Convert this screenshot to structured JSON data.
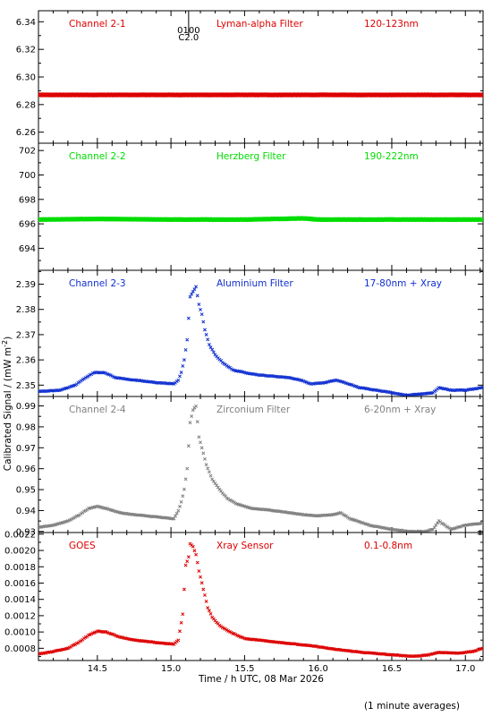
{
  "figure": {
    "xlabel": "Time / h UTC, 08 Mar 2026",
    "ylabel": "Calibrated Signal / (mW m",
    "ylabel_sup": "-2",
    "ylabel_close": ")",
    "footer": "(1 minute averages)",
    "marker_top": "0100",
    "marker_bottom": "C2.0",
    "marker_time": 15.12
  },
  "chart_data": [
    {
      "type": "scatter",
      "name": "Channel 2-1",
      "filter": "Lyman-alpha Filter",
      "band": "120-123nm",
      "color": "#dd0000",
      "xlim": [
        14.1,
        17.12
      ],
      "ylim": [
        6.252,
        6.348
      ],
      "yticks": [
        6.26,
        6.28,
        6.3,
        6.32,
        6.34
      ],
      "ytick_labels": [
        "6.26",
        "6.28",
        "6.30",
        "6.32",
        "6.34"
      ],
      "points": [
        [
          14.1,
          6.287
        ],
        [
          14.5,
          6.287
        ],
        [
          15.0,
          6.287
        ],
        [
          15.5,
          6.287
        ],
        [
          16.0,
          6.287
        ],
        [
          16.5,
          6.287
        ],
        [
          17.12,
          6.287
        ]
      ]
    },
    {
      "type": "scatter",
      "name": "Channel 2-2",
      "filter": "Herzberg Filter",
      "band": "190-222nm",
      "color": "#00dd00",
      "xlim": [
        14.1,
        17.12
      ],
      "ylim": [
        692.2,
        702.6
      ],
      "yticks": [
        694,
        696,
        698,
        700,
        702
      ],
      "ytick_labels": [
        "694",
        "696",
        "698",
        "700",
        "702"
      ],
      "points": [
        [
          14.1,
          696.35
        ],
        [
          14.5,
          696.4
        ],
        [
          15.0,
          696.35
        ],
        [
          15.5,
          696.35
        ],
        [
          15.9,
          696.45
        ],
        [
          16.0,
          696.35
        ],
        [
          16.5,
          696.35
        ],
        [
          17.12,
          696.35
        ]
      ]
    },
    {
      "type": "scatter",
      "name": "Channel 2-3",
      "filter": "Aluminium Filter",
      "band": "17-80nm + Xray",
      "color": "#1030d0",
      "xlim": [
        14.1,
        17.12
      ],
      "ylim": [
        2.3455,
        2.3955
      ],
      "yticks": [
        2.35,
        2.36,
        2.37,
        2.38,
        2.39
      ],
      "ytick_labels": [
        "2.35",
        "2.36",
        "2.37",
        "2.38",
        "2.39"
      ],
      "points": [
        [
          14.1,
          2.3475
        ],
        [
          14.25,
          2.348
        ],
        [
          14.35,
          2.35
        ],
        [
          14.42,
          2.353
        ],
        [
          14.48,
          2.355
        ],
        [
          14.55,
          2.355
        ],
        [
          14.62,
          2.353
        ],
        [
          14.75,
          2.352
        ],
        [
          14.9,
          2.351
        ],
        [
          15.02,
          2.3505
        ],
        [
          15.05,
          2.352
        ],
        [
          15.07,
          2.355
        ],
        [
          15.09,
          2.36
        ],
        [
          15.11,
          2.368
        ],
        [
          15.13,
          2.385
        ],
        [
          15.15,
          2.387
        ],
        [
          15.17,
          2.389
        ],
        [
          15.19,
          2.382
        ],
        [
          15.21,
          2.378
        ],
        [
          15.23,
          2.372
        ],
        [
          15.26,
          2.366
        ],
        [
          15.3,
          2.362
        ],
        [
          15.35,
          2.359
        ],
        [
          15.42,
          2.356
        ],
        [
          15.5,
          2.355
        ],
        [
          15.6,
          2.354
        ],
        [
          15.7,
          2.3535
        ],
        [
          15.8,
          2.353
        ],
        [
          15.88,
          2.352
        ],
        [
          15.95,
          2.3505
        ],
        [
          16.05,
          2.351
        ],
        [
          16.12,
          2.352
        ],
        [
          16.18,
          2.351
        ],
        [
          16.28,
          2.349
        ],
        [
          16.4,
          2.348
        ],
        [
          16.5,
          2.347
        ],
        [
          16.6,
          2.346
        ],
        [
          16.7,
          2.3465
        ],
        [
          16.78,
          2.347
        ],
        [
          16.82,
          2.349
        ],
        [
          16.9,
          2.348
        ],
        [
          17.0,
          2.348
        ],
        [
          17.12,
          2.349
        ]
      ]
    },
    {
      "type": "scatter",
      "name": "Channel 2-4",
      "filter": "Zirconium Filter",
      "band": "6-20nm + Xray",
      "color": "#808080",
      "xlim": [
        14.1,
        17.12
      ],
      "ylim": [
        0.9295,
        0.9945
      ],
      "yticks": [
        0.93,
        0.94,
        0.95,
        0.96,
        0.97,
        0.98,
        0.99
      ],
      "ytick_labels": [
        "0.93",
        "0.94",
        "0.95",
        "0.96",
        "0.97",
        "0.98",
        "0.99"
      ],
      "points": [
        [
          14.1,
          0.932
        ],
        [
          14.2,
          0.933
        ],
        [
          14.3,
          0.935
        ],
        [
          14.38,
          0.938
        ],
        [
          14.44,
          0.941
        ],
        [
          14.5,
          0.942
        ],
        [
          14.56,
          0.941
        ],
        [
          14.65,
          0.939
        ],
        [
          14.75,
          0.938
        ],
        [
          14.9,
          0.937
        ],
        [
          15.02,
          0.936
        ],
        [
          15.05,
          0.94
        ],
        [
          15.07,
          0.944
        ],
        [
          15.09,
          0.95
        ],
        [
          15.11,
          0.96
        ],
        [
          15.13,
          0.982
        ],
        [
          15.15,
          0.988
        ],
        [
          15.17,
          0.99
        ],
        [
          15.19,
          0.975
        ],
        [
          15.21,
          0.97
        ],
        [
          15.24,
          0.962
        ],
        [
          15.28,
          0.955
        ],
        [
          15.33,
          0.95
        ],
        [
          15.38,
          0.946
        ],
        [
          15.45,
          0.943
        ],
        [
          15.55,
          0.941
        ],
        [
          15.7,
          0.94
        ],
        [
          15.8,
          0.939
        ],
        [
          15.9,
          0.938
        ],
        [
          16.0,
          0.9375
        ],
        [
          16.1,
          0.938
        ],
        [
          16.15,
          0.939
        ],
        [
          16.22,
          0.936
        ],
        [
          16.35,
          0.933
        ],
        [
          16.5,
          0.931
        ],
        [
          16.62,
          0.93
        ],
        [
          16.72,
          0.93
        ],
        [
          16.78,
          0.931
        ],
        [
          16.82,
          0.935
        ],
        [
          16.9,
          0.931
        ],
        [
          17.0,
          0.933
        ],
        [
          17.12,
          0.934
        ]
      ]
    },
    {
      "type": "scatter",
      "name": "GOES",
      "filter": "Xray Sensor",
      "band": "0.1-0.8nm",
      "color": "#dd0000",
      "xlim": [
        14.1,
        17.12
      ],
      "ylim": [
        0.00065,
        0.00222
      ],
      "yticks": [
        0.0008,
        0.001,
        0.0012,
        0.0014,
        0.0016,
        0.0018,
        0.002,
        0.0022
      ],
      "ytick_labels": [
        "0.0008",
        "0.0010",
        "0.0012",
        "0.0014",
        "0.0016",
        "0.0018",
        "0.0020",
        "0.0022"
      ],
      "points": [
        [
          14.1,
          0.00073
        ],
        [
          14.2,
          0.00076
        ],
        [
          14.3,
          0.0008
        ],
        [
          14.38,
          0.00088
        ],
        [
          14.44,
          0.00096
        ],
        [
          14.5,
          0.00101
        ],
        [
          14.56,
          0.001
        ],
        [
          14.65,
          0.00094
        ],
        [
          14.75,
          0.0009
        ],
        [
          14.9,
          0.00087
        ],
        [
          15.02,
          0.00085
        ],
        [
          15.05,
          0.0009
        ],
        [
          15.08,
          0.00122
        ],
        [
          15.1,
          0.00182
        ],
        [
          15.12,
          0.00192
        ],
        [
          15.13,
          0.00208
        ],
        [
          15.15,
          0.00205
        ],
        [
          15.17,
          0.00195
        ],
        [
          15.19,
          0.00175
        ],
        [
          15.21,
          0.0016
        ],
        [
          15.23,
          0.00145
        ],
        [
          15.25,
          0.0013
        ],
        [
          15.28,
          0.00118
        ],
        [
          15.33,
          0.00108
        ],
        [
          15.4,
          0.001
        ],
        [
          15.5,
          0.00092
        ],
        [
          15.7,
          0.00088
        ],
        [
          15.9,
          0.00084
        ],
        [
          16.0,
          0.00082
        ],
        [
          16.1,
          0.00079
        ],
        [
          16.15,
          0.00078
        ],
        [
          16.3,
          0.00075
        ],
        [
          16.5,
          0.00072
        ],
        [
          16.65,
          0.0007
        ],
        [
          16.75,
          0.00072
        ],
        [
          16.82,
          0.00075
        ],
        [
          16.95,
          0.00074
        ],
        [
          17.05,
          0.00076
        ],
        [
          17.12,
          0.0008
        ]
      ]
    }
  ],
  "x_axis": {
    "ticks": [
      14.5,
      15.0,
      15.5,
      16.0,
      16.5,
      17.0
    ],
    "labels": [
      "14.5",
      "15.0",
      "15.5",
      "16.0",
      "16.5",
      "17.0"
    ]
  }
}
